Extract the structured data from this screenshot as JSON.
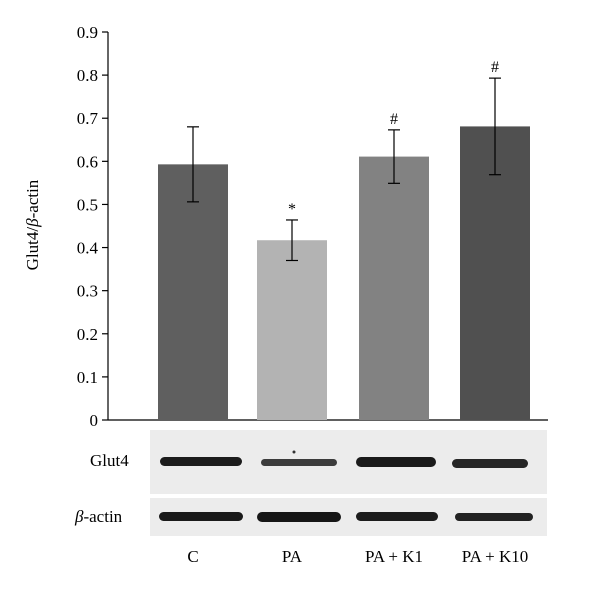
{
  "chart_data": {
    "type": "bar",
    "categories": [
      "C",
      "PA",
      "PA + K1",
      "PA + K10"
    ],
    "values": [
      0.593,
      0.417,
      0.611,
      0.681
    ],
    "errors": [
      0.087,
      0.047,
      0.062,
      0.112
    ],
    "significance": [
      "",
      "*",
      "#",
      "#"
    ],
    "bar_colors": [
      "#5f5f5f",
      "#b3b3b3",
      "#828282",
      "#505050"
    ],
    "title": "",
    "xlabel": "",
    "ylabel_prefix": "Glut4/",
    "ylabel_symbol": "β",
    "ylabel_suffix": "-actin",
    "ylim": [
      0,
      0.9
    ],
    "yticks": [
      "0",
      "0.1",
      "0.2",
      "0.3",
      "0.4",
      "0.5",
      "0.6",
      "0.7",
      "0.8",
      "0.9"
    ],
    "grid": false
  },
  "blot": {
    "rows": [
      {
        "label": "Glut4",
        "symbol": ""
      },
      {
        "label": "-actin",
        "symbol": "β"
      }
    ]
  }
}
